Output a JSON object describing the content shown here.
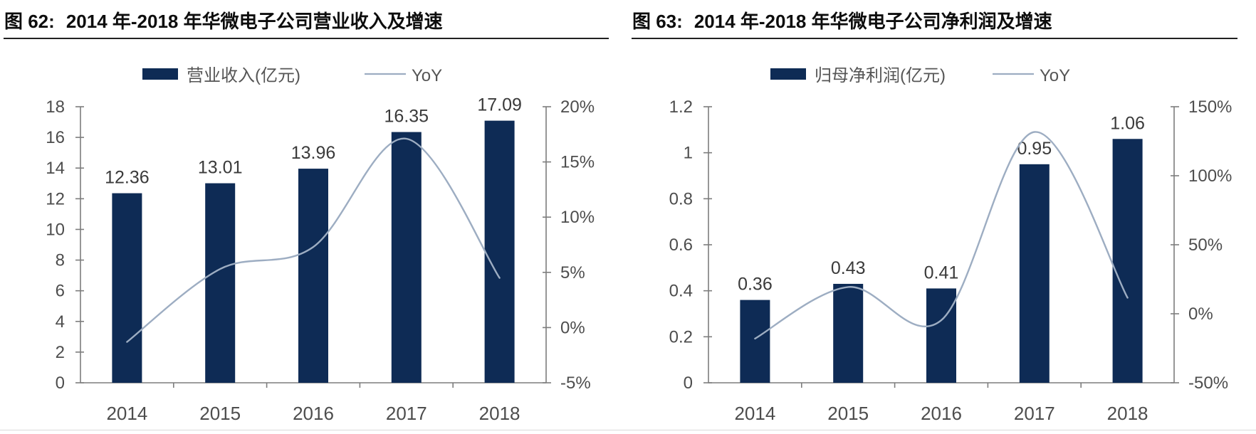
{
  "page": {
    "background": "#ffffff"
  },
  "colors": {
    "bar": "#0e2b55",
    "line": "#9dadc2",
    "axis": "#7d7d7d",
    "axis_text": "#4d4d4d",
    "data_label": "#3a3a3a",
    "title": "#0d0d0d"
  },
  "chart_data": [
    {
      "type": "bar+line",
      "figure_label": "图 62:",
      "title": "2014 年-2018 年华微电子公司营业收入及增速",
      "categories": [
        "2014",
        "2015",
        "2016",
        "2017",
        "2018"
      ],
      "bar_series": {
        "name": "营业收入(亿元)",
        "values": [
          12.36,
          13.01,
          13.96,
          16.35,
          17.09
        ],
        "labels": [
          "12.36",
          "13.01",
          "13.96",
          "16.35",
          "17.09"
        ],
        "axis": "left"
      },
      "line_series": {
        "name": "YoY",
        "values_pct": [
          -1.3,
          5.3,
          7.3,
          17.1,
          4.5
        ],
        "axis": "right"
      },
      "left_axis": {
        "min": 0,
        "max": 18,
        "tick_values": [
          18,
          16,
          14,
          12,
          10,
          8,
          6,
          4,
          2,
          0
        ],
        "tick_labels": [
          "18",
          "16",
          "14",
          "12",
          "10",
          "8",
          "6",
          "4",
          "2",
          "0"
        ]
      },
      "right_axis": {
        "min": -5,
        "max": 20,
        "tick_values": [
          20,
          15,
          10,
          5,
          0,
          -5
        ],
        "tick_labels": [
          "20%",
          "15%",
          "10%",
          "5%",
          "0%",
          "-5%"
        ]
      },
      "legend_position": "top"
    },
    {
      "type": "bar+line",
      "figure_label": "图 63:",
      "title": "2014 年-2018 年华微电子公司净利润及增速",
      "categories": [
        "2014",
        "2015",
        "2016",
        "2017",
        "2018"
      ],
      "bar_series": {
        "name": "归母净利润(亿元)",
        "values": [
          0.36,
          0.43,
          0.41,
          0.95,
          1.06
        ],
        "labels": [
          "0.36",
          "0.43",
          "0.41",
          "0.95",
          "1.06"
        ],
        "axis": "left"
      },
      "line_series": {
        "name": "YoY",
        "values_pct": [
          -18,
          19.4,
          -4.7,
          131.7,
          11.6
        ],
        "axis": "right"
      },
      "left_axis": {
        "min": 0,
        "max": 1.2,
        "tick_values": [
          1.2,
          1,
          0.8,
          0.6,
          0.4,
          0.2,
          0
        ],
        "tick_labels": [
          "1.2",
          "1",
          "0.8",
          "0.6",
          "0.4",
          "0.2",
          "0"
        ]
      },
      "right_axis": {
        "min": -50,
        "max": 150,
        "tick_values": [
          150,
          100,
          50,
          0,
          -50
        ],
        "tick_labels": [
          "150%",
          "100%",
          "50%",
          "0%",
          "-50%"
        ]
      },
      "legend_position": "top"
    }
  ]
}
